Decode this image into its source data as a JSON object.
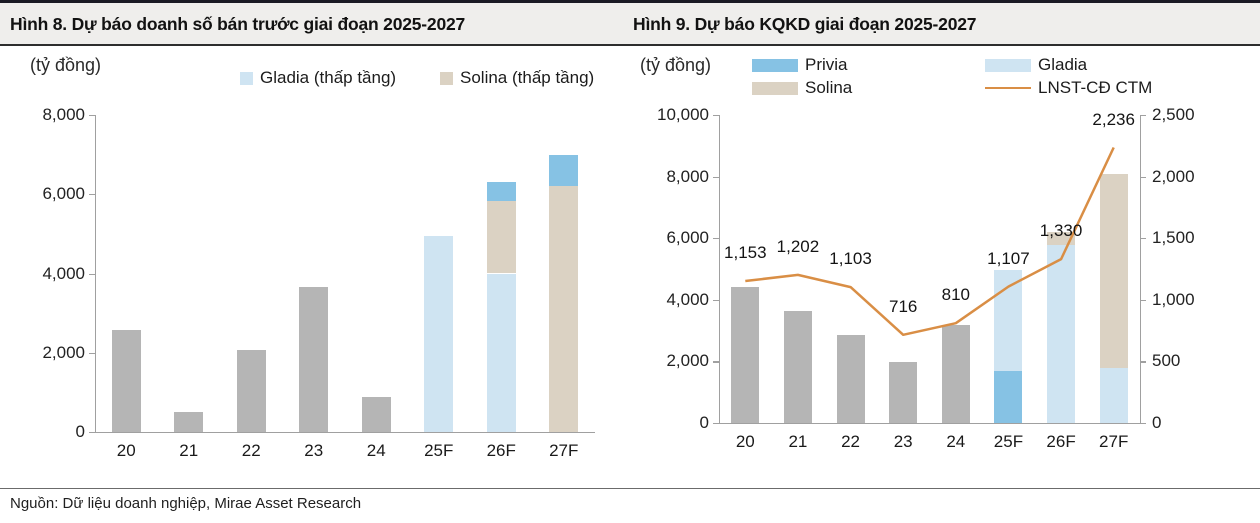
{
  "header": {
    "figure8_title": "Hình 8. Dự báo doanh số bán trước giai đoạn 2025-2027",
    "figure9_title": "Hình 9. Dự báo KQKD giai đoạn 2025-2027"
  },
  "footer": {
    "source_note": "Nguồn: Dữ liệu doanh nghiệp, Mirae Asset Research"
  },
  "colors": {
    "gray_bar": "#b5b5b5",
    "gladia_blue": "#cfe4f2",
    "privia_blue": "#86c2e4",
    "solina_tan": "#dbd2c3",
    "lnst_line_orange": "#d98e45",
    "axis_gray": "#a0a0a0"
  },
  "chart_data": [
    {
      "type": "bar",
      "stacked": true,
      "title": "Hình 8. Dự báo doanh số bán trước giai đoạn 2025-2027",
      "unit": "(tỷ đồng)",
      "xlabel": "",
      "ylabel": "(tỷ đồng)",
      "ylim": [
        0,
        8000
      ],
      "grid": false,
      "legend_position": "top",
      "legend": [
        {
          "label": "Gladia (thấp tầng)",
          "series": "gladia"
        },
        {
          "label": "Solina (thấp tầng)",
          "series": "solina"
        }
      ],
      "series_colors": {
        "gray": "#b5b5b5",
        "gladia": "#cfe4f2",
        "solina": "#dbd2c3",
        "privia": "#86c2e4"
      },
      "categories": [
        "20",
        "21",
        "22",
        "23",
        "24",
        "25F",
        "26F",
        "27F"
      ],
      "bars": [
        {
          "category": "20",
          "segments": [
            {
              "series": "gray",
              "value": 2580
            }
          ]
        },
        {
          "category": "21",
          "segments": [
            {
              "series": "gray",
              "value": 500
            }
          ]
        },
        {
          "category": "22",
          "segments": [
            {
              "series": "gray",
              "value": 2070
            }
          ]
        },
        {
          "category": "23",
          "segments": [
            {
              "series": "gray",
              "value": 3670
            }
          ]
        },
        {
          "category": "24",
          "segments": [
            {
              "series": "gray",
              "value": 890
            }
          ]
        },
        {
          "category": "25F",
          "segments": [
            {
              "series": "gladia",
              "value": 4950
            }
          ]
        },
        {
          "category": "26F",
          "segments": [
            {
              "series": "gladia",
              "value": 4000
            },
            {
              "series": "solina",
              "value": 1820
            },
            {
              "series": "privia",
              "value": 500
            }
          ]
        },
        {
          "category": "27F",
          "segments": [
            {
              "series": "solina",
              "value": 6200
            },
            {
              "series": "privia",
              "value": 790
            }
          ]
        }
      ],
      "yticks": [
        {
          "value": 0,
          "label": "0"
        },
        {
          "value": 2000,
          "label": "2,000"
        },
        {
          "value": 4000,
          "label": "4,000"
        },
        {
          "value": 6000,
          "label": "6,000"
        },
        {
          "value": 8000,
          "label": "8,000"
        }
      ]
    },
    {
      "type": "bar+line",
      "stacked": true,
      "title": "Hình 9. Dự báo KQKD giai đoạn 2025-2027",
      "unit": "(tỷ đồng)",
      "xlabel": "",
      "ylabel_left": "(tỷ đồng)",
      "ylim": [
        0,
        10000
      ],
      "ylim_right": [
        0,
        2500
      ],
      "grid": false,
      "legend_position": "top",
      "legend": [
        {
          "label": "Privia",
          "series": "privia"
        },
        {
          "label": "Solina",
          "series": "solina"
        },
        {
          "label": "Gladia",
          "series": "gladia"
        },
        {
          "label": "LNST-CĐ CTM",
          "series": "line"
        }
      ],
      "series_colors": {
        "gray": "#b5b5b5",
        "gladia": "#cfe4f2",
        "solina": "#dbd2c3",
        "privia": "#86c2e4"
      },
      "categories": [
        "20",
        "21",
        "22",
        "23",
        "24",
        "25F",
        "26F",
        "27F"
      ],
      "bars": [
        {
          "category": "20",
          "segments": [
            {
              "series": "gray",
              "value": 4420
            }
          ]
        },
        {
          "category": "21",
          "segments": [
            {
              "series": "gray",
              "value": 3640
            }
          ]
        },
        {
          "category": "22",
          "segments": [
            {
              "series": "gray",
              "value": 2850
            }
          ]
        },
        {
          "category": "23",
          "segments": [
            {
              "series": "gray",
              "value": 1980
            }
          ]
        },
        {
          "category": "24",
          "segments": [
            {
              "series": "gray",
              "value": 3180
            }
          ]
        },
        {
          "category": "25F",
          "segments": [
            {
              "series": "privia",
              "value": 1680
            },
            {
              "series": "gladia",
              "value": 3290
            }
          ]
        },
        {
          "category": "26F",
          "segments": [
            {
              "series": "gladia",
              "value": 5780
            },
            {
              "series": "solina",
              "value": 420
            }
          ]
        },
        {
          "category": "27F",
          "segments": [
            {
              "series": "gladia",
              "value": 1770
            },
            {
              "series": "solina",
              "value": 6320
            }
          ]
        }
      ],
      "line": {
        "name": "LNST-CĐ CTM",
        "axis": "right",
        "color": "#d98e45",
        "points": [
          {
            "category": "20",
            "value": 1153,
            "label": "1,153"
          },
          {
            "category": "21",
            "value": 1202,
            "label": "1,202"
          },
          {
            "category": "22",
            "value": 1103,
            "label": "1,103"
          },
          {
            "category": "23",
            "value": 716,
            "label": "716"
          },
          {
            "category": "24",
            "value": 810,
            "label": "810"
          },
          {
            "category": "25F",
            "value": 1107,
            "label": "1,107"
          },
          {
            "category": "26F",
            "value": 1330,
            "label": "1,330"
          },
          {
            "category": "27F",
            "value": 2236,
            "label": "2,236"
          }
        ]
      },
      "yticks": [
        {
          "value": 0,
          "label": "0"
        },
        {
          "value": 2000,
          "label": "2,000"
        },
        {
          "value": 4000,
          "label": "4,000"
        },
        {
          "value": 6000,
          "label": "6,000"
        },
        {
          "value": 8000,
          "label": "8,000"
        },
        {
          "value": 10000,
          "label": "10,000"
        }
      ],
      "yticks_right": [
        {
          "value": 0,
          "label": "0"
        },
        {
          "value": 500,
          "label": "500"
        },
        {
          "value": 1000,
          "label": "1,000"
        },
        {
          "value": 1500,
          "label": "1,500"
        },
        {
          "value": 2000,
          "label": "2,000"
        },
        {
          "value": 2500,
          "label": "2,500"
        }
      ]
    }
  ]
}
